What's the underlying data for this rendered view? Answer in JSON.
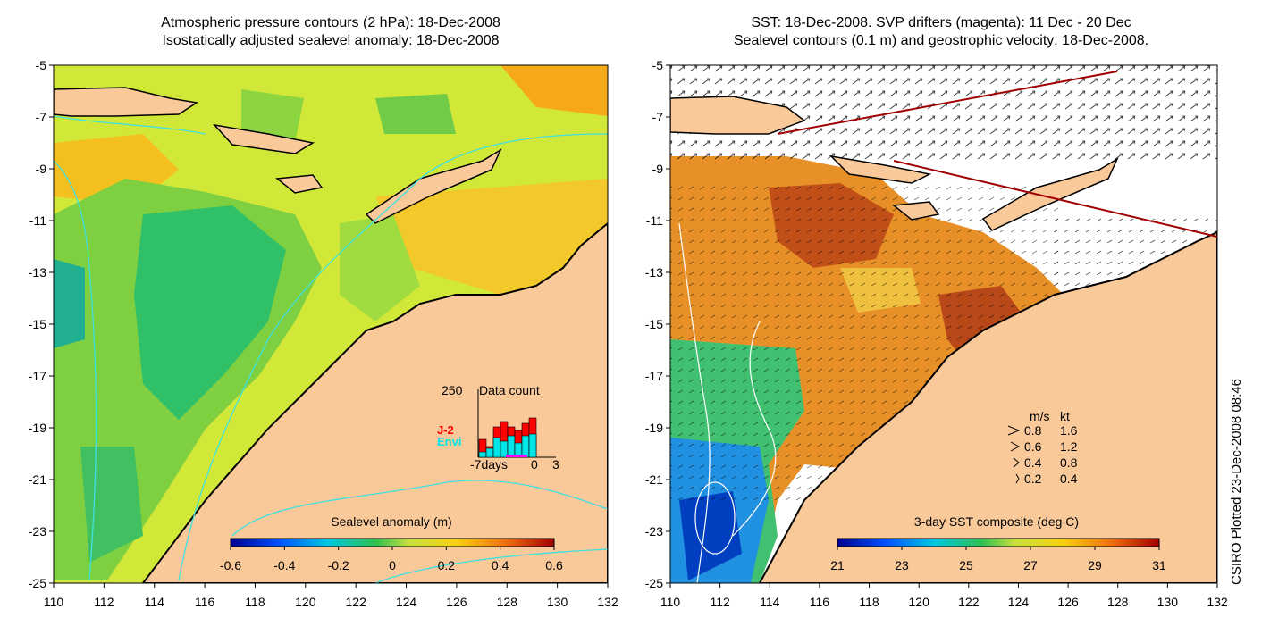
{
  "left_panel": {
    "title_line1": "Atmospheric pressure contours (2 hPa): 18-Dec-2008",
    "title_line2": "Isostatically adjusted sealevel anomaly: 18-Dec-2008",
    "colorbar_label": "Sealevel anomaly (m)",
    "colorbar_ticks": [
      "-0.6",
      "-0.4",
      "-0.2",
      "0",
      "0.2",
      "0.4",
      "0.6"
    ],
    "inset": {
      "label_max": "250",
      "title": "Data count",
      "series": [
        {
          "name": "J-2",
          "color": "#ff0000"
        },
        {
          "name": "Envi",
          "color": "#00e5e5"
        }
      ],
      "x_labels": [
        "-7days",
        "0",
        "3"
      ]
    }
  },
  "right_panel": {
    "title_line1": "SST: 18-Dec-2008. SVP drifters (magenta): 11 Dec - 20 Dec",
    "title_line2": "Sealevel contours (0.1 m) and geostrophic velocity: 18-Dec-2008.",
    "colorbar_label": "3-day SST composite (deg C)",
    "colorbar_ticks": [
      "21",
      "23",
      "25",
      "27",
      "29",
      "31"
    ],
    "velocity_legend": {
      "header_ms": "m/s",
      "header_kt": "kt",
      "rows": [
        {
          "ms": "0.8",
          "kt": "1.6"
        },
        {
          "ms": "0.6",
          "kt": "1.2"
        },
        {
          "ms": "0.4",
          "kt": "0.8"
        },
        {
          "ms": "0.2",
          "kt": "0.4"
        }
      ]
    }
  },
  "axes": {
    "y_ticks": [
      "-5",
      "-7",
      "-9",
      "-11",
      "-13",
      "-15",
      "-17",
      "-19",
      "-21",
      "-23",
      "-25"
    ],
    "x_ticks": [
      "110",
      "112",
      "114",
      "116",
      "118",
      "120",
      "122",
      "124",
      "126",
      "128",
      "130",
      "132"
    ]
  },
  "credit": "CSIRO Plotted 23-Dec-2008 08:46",
  "colors": {
    "land": "#f9c99a",
    "coast": "#000000",
    "contour": "#40e0e0",
    "no_data": "#ffffff"
  }
}
